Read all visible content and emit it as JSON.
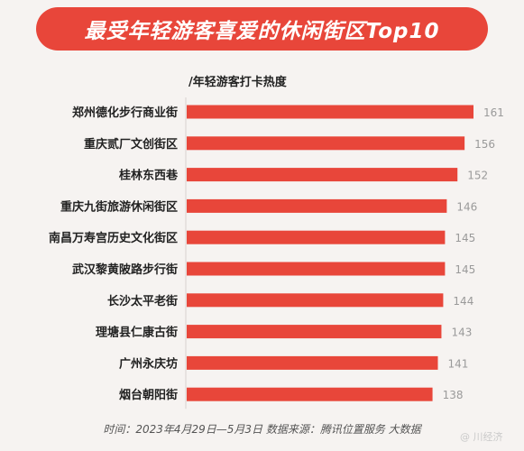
{
  "title": "最受年轻游客喜爱的休闲街区Top10",
  "chart_data": {
    "type": "bar",
    "orientation": "horizontal",
    "title": "最受年轻游客喜爱的休闲街区Top10",
    "ylabel": "/年轻游客打卡热度",
    "categories": [
      "郑州德化步行商业街",
      "重庆贰厂文创街区",
      "桂林东西巷",
      "重庆九街旅游休闲街区",
      "南昌万寿宫历史文化街区",
      "武汉黎黄陂路步行街",
      "长沙太平老街",
      "理塘县仁康古街",
      "广州永庆坊",
      "烟台朝阳街"
    ],
    "values": [
      161,
      156,
      152,
      146,
      145,
      145,
      144,
      143,
      141,
      138
    ],
    "bar_color": "#e8463a",
    "data_labels": true,
    "grid": false
  },
  "footer": "时间：2023年4月29日—5月3日   数据来源：腾讯位置服务 大数据",
  "watermark": "@ 川经济"
}
